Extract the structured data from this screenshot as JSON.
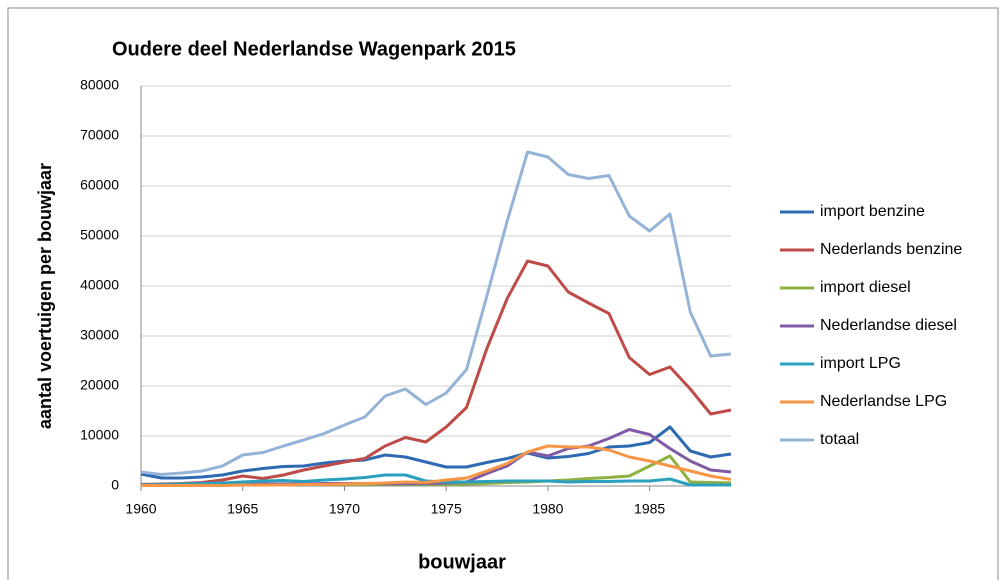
{
  "chart_data": {
    "type": "line",
    "title": "Oudere deel Nederlandse Wagenpark 2015",
    "x_label": "bouwjaar",
    "y_label": "aantal voertuigen per bouwjaar",
    "x": [
      1960,
      1961,
      1962,
      1963,
      1964,
      1965,
      1966,
      1967,
      1968,
      1969,
      1970,
      1971,
      1972,
      1973,
      1974,
      1975,
      1976,
      1977,
      1978,
      1979,
      1980,
      1981,
      1982,
      1983,
      1984,
      1985,
      1986,
      1987,
      1988,
      1989
    ],
    "xlim": [
      1960,
      1989
    ],
    "xticks": [
      1960,
      1965,
      1970,
      1975,
      1980,
      1985
    ],
    "ylim": [
      0,
      80000
    ],
    "yticks": [
      0,
      10000,
      20000,
      30000,
      40000,
      50000,
      60000,
      70000,
      80000
    ],
    "grid": true,
    "legend": "right",
    "series": [
      {
        "name": "import benzine",
        "color": "#2e6ab1",
        "values": [
          2400,
          1600,
          1600,
          1800,
          2200,
          3000,
          3500,
          3900,
          4000,
          4600,
          5000,
          5200,
          6200,
          5800,
          4800,
          3800,
          3800,
          4700,
          5500,
          6600,
          5600,
          5900,
          6500,
          7800,
          8000,
          8700,
          11800,
          7000,
          5800,
          6400
        ]
      },
      {
        "name": "Nederlands benzine",
        "color": "#be4b48",
        "values": [
          300,
          400,
          500,
          700,
          1200,
          2000,
          1500,
          2200,
          3200,
          4000,
          4800,
          5500,
          8000,
          9700,
          8800,
          11800,
          15700,
          27500,
          37500,
          45000,
          44000,
          38800,
          36600,
          34500,
          25700,
          22300,
          23800,
          19400,
          14400,
          15200
        ]
      },
      {
        "name": "import diesel",
        "color": "#8db043",
        "values": [
          100,
          100,
          100,
          100,
          200,
          200,
          200,
          200,
          300,
          300,
          300,
          300,
          400,
          400,
          300,
          300,
          400,
          500,
          700,
          800,
          1000,
          1200,
          1500,
          1700,
          2000,
          4000,
          6000,
          800,
          700,
          600
        ]
      },
      {
        "name": "Nederlandse diesel",
        "color": "#7f5ba6",
        "values": [
          200,
          200,
          200,
          300,
          300,
          400,
          400,
          400,
          400,
          500,
          500,
          500,
          500,
          500,
          500,
          600,
          800,
          2500,
          4000,
          6800,
          6000,
          7500,
          8000,
          9500,
          11300,
          10300,
          7500,
          5000,
          3200,
          2800
        ]
      },
      {
        "name": "import LPG",
        "color": "#2aa0bf",
        "values": [
          200,
          300,
          400,
          500,
          600,
          800,
          1000,
          1100,
          900,
          1200,
          1400,
          1700,
          2200,
          2200,
          1000,
          800,
          800,
          900,
          1000,
          1000,
          1000,
          800,
          900,
          900,
          1000,
          1000,
          1400,
          200,
          200,
          200
        ]
      },
      {
        "name": "Nederlandse LPG",
        "color": "#f79646",
        "values": [
          100,
          100,
          100,
          100,
          100,
          200,
          200,
          200,
          300,
          300,
          400,
          500,
          600,
          800,
          700,
          1200,
          1600,
          3000,
          4500,
          6800,
          8000,
          7800,
          7800,
          7200,
          5800,
          5000,
          4000,
          3000,
          2000,
          1300
        ]
      },
      {
        "name": "totaal",
        "color": "#95b3d7",
        "values": [
          2800,
          2300,
          2600,
          3000,
          4000,
          6200,
          6700,
          8000,
          9200,
          10500,
          12200,
          13800,
          18000,
          19400,
          16300,
          18600,
          23300,
          38000,
          53000,
          66800,
          65800,
          62300,
          61500,
          62100,
          54000,
          51000,
          54400,
          34800,
          26000,
          26400
        ]
      }
    ]
  }
}
